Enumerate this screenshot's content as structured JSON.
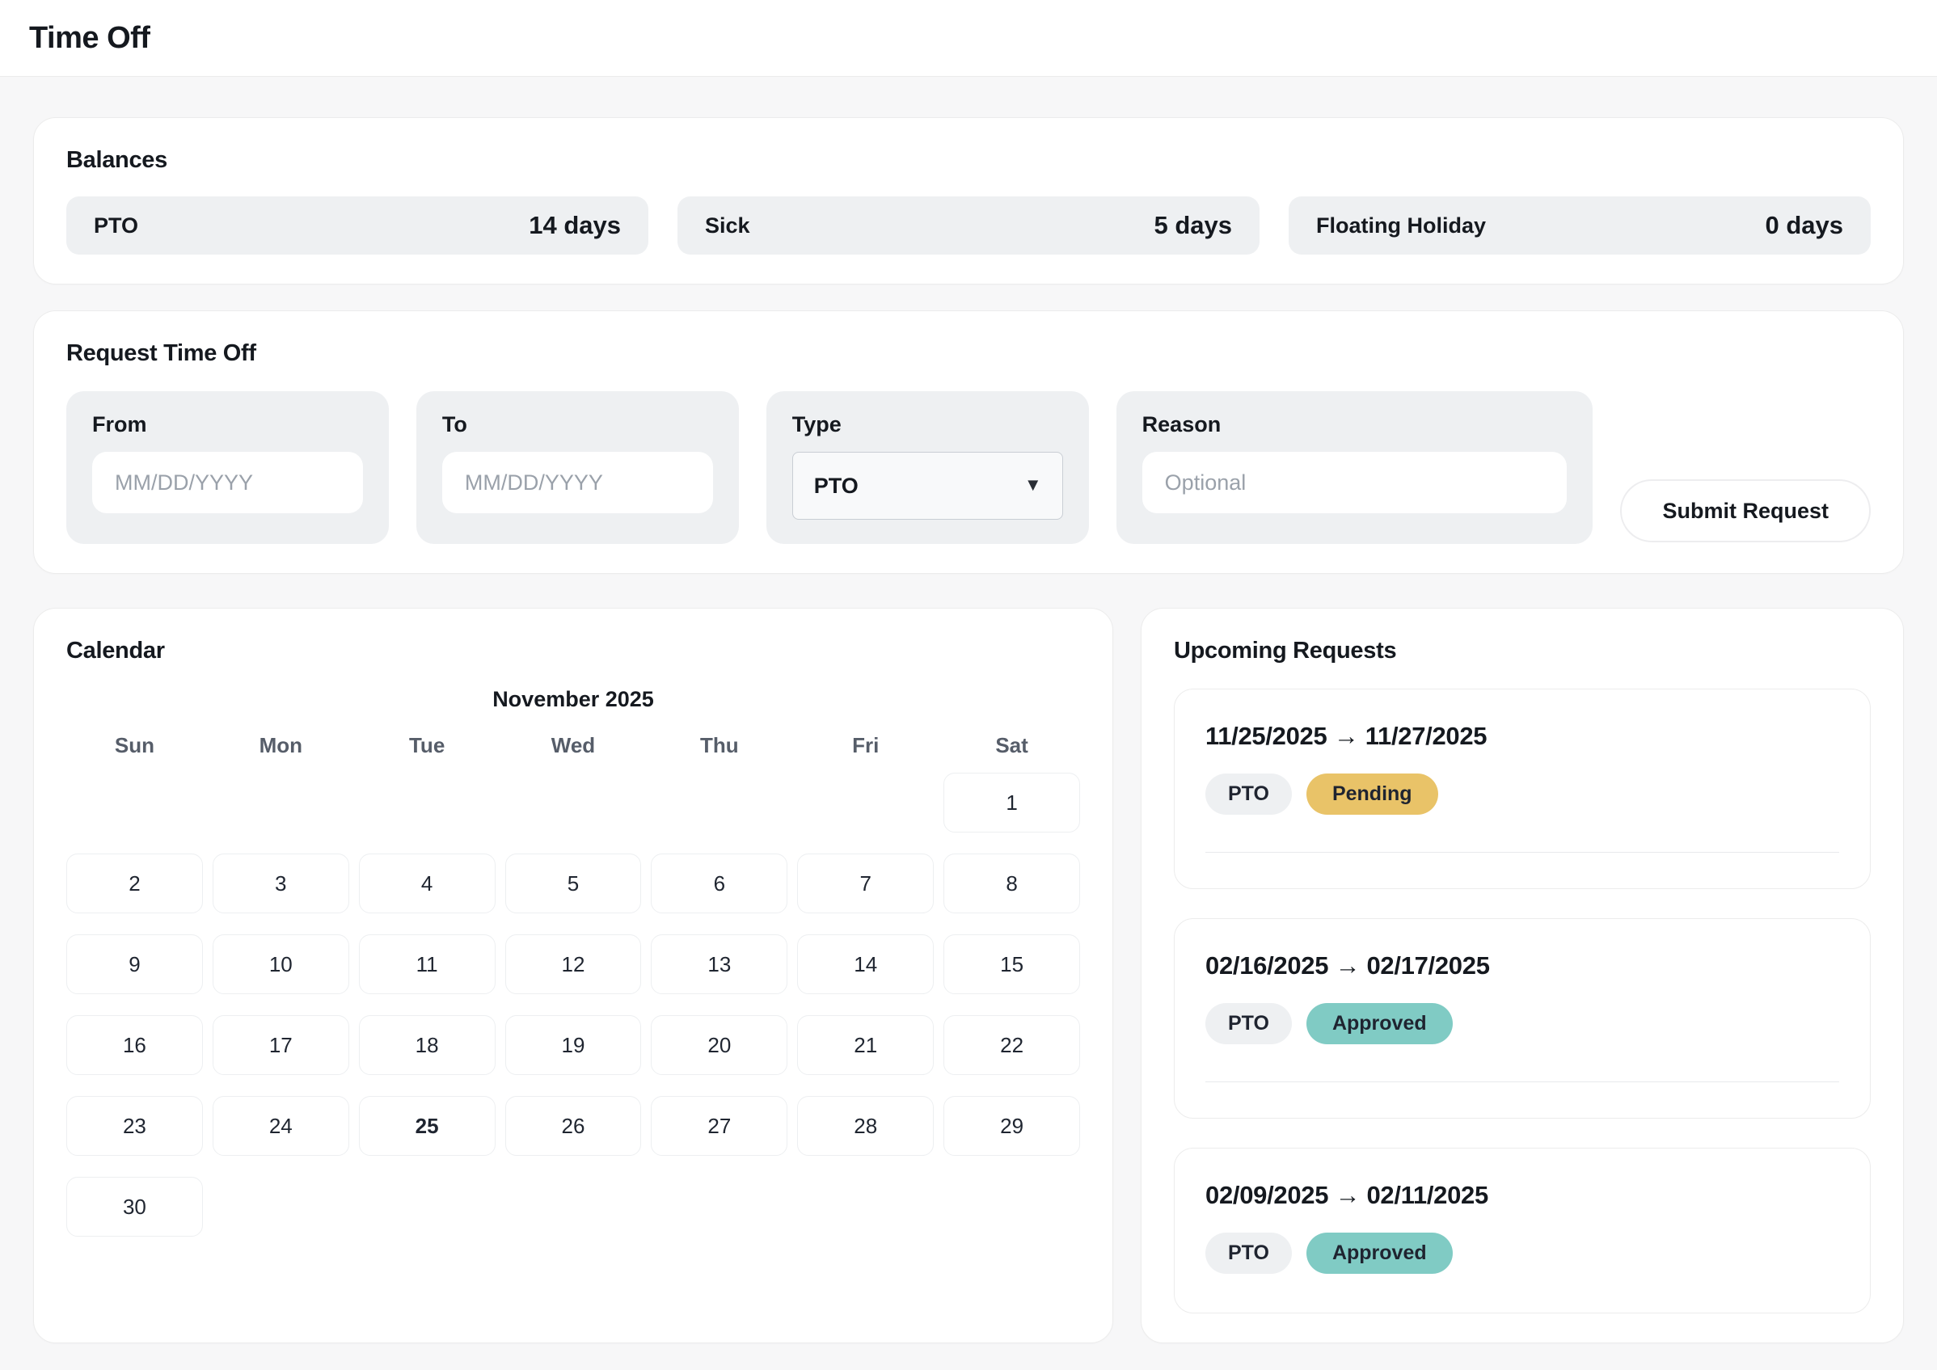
{
  "header": {
    "title": "Time Off"
  },
  "balances": {
    "title": "Balances",
    "items": [
      {
        "label": "PTO",
        "value": "14 days"
      },
      {
        "label": "Sick",
        "value": "5 days"
      },
      {
        "label": "Floating Holiday",
        "value": "0 days"
      }
    ]
  },
  "request_form": {
    "title": "Request Time Off",
    "from": {
      "label": "From",
      "placeholder": "MM/DD/YYYY",
      "value": ""
    },
    "to": {
      "label": "To",
      "placeholder": "MM/DD/YYYY",
      "value": ""
    },
    "type": {
      "label": "Type",
      "selected": "PTO",
      "options": [
        "PTO"
      ],
      "caret_icon": "▼"
    },
    "reason": {
      "label": "Reason",
      "placeholder": "Optional",
      "value": ""
    },
    "submit_label": "Submit Request"
  },
  "calendar": {
    "title": "Calendar",
    "month_label": "November 2025",
    "weekdays": [
      "Sun",
      "Mon",
      "Tue",
      "Wed",
      "Thu",
      "Fri",
      "Sat"
    ],
    "leading_blanks": 6,
    "days": [
      1,
      2,
      3,
      4,
      5,
      6,
      7,
      8,
      9,
      10,
      11,
      12,
      13,
      14,
      15,
      16,
      17,
      18,
      19,
      20,
      21,
      22,
      23,
      24,
      25,
      26,
      27,
      28,
      29,
      30
    ],
    "emphasized_day": 25
  },
  "upcoming": {
    "title": "Upcoming Requests",
    "requests": [
      {
        "range": "11/25/2025 → 11/27/2025",
        "type": "PTO",
        "status": "Pending"
      },
      {
        "range": "02/16/2025 → 02/17/2025",
        "type": "PTO",
        "status": "Approved"
      },
      {
        "range": "02/09/2025 → 02/11/2025",
        "type": "PTO",
        "status": "Approved"
      }
    ]
  },
  "colors": {
    "status": {
      "Pending": "#e9c368",
      "Approved": "#80cbc4"
    },
    "status_text": "#1f2430",
    "accent_gray": "#eef0f2",
    "page_background": "#f7f7f8"
  }
}
